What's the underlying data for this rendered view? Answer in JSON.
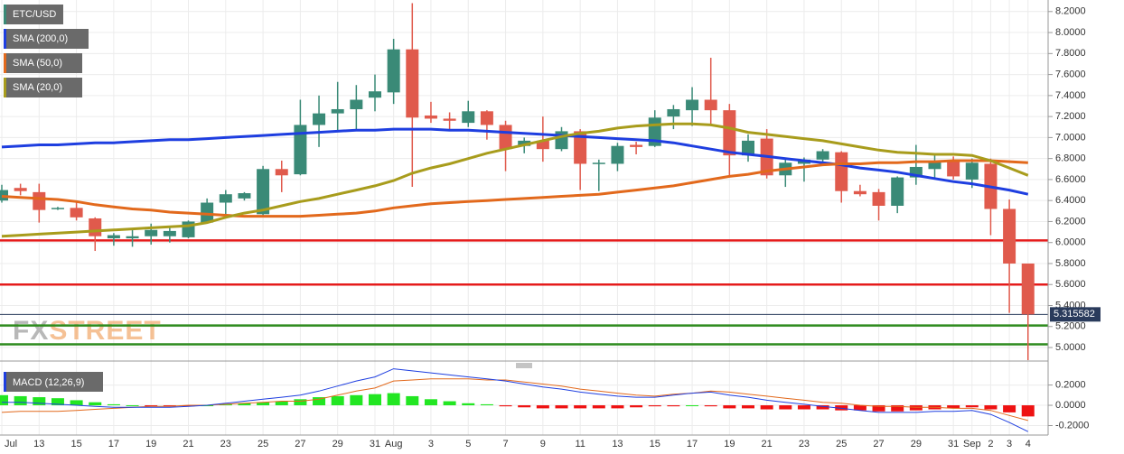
{
  "chart_data": [
    {
      "type": "candlestick",
      "categories": [
        "Jul",
        null,
        "13",
        null,
        "15",
        null,
        "17",
        null,
        "19",
        null,
        "21",
        null,
        "23",
        null,
        "25",
        null,
        "27",
        null,
        "29",
        null,
        "31",
        "Aug",
        null,
        "3",
        null,
        "5",
        null,
        "7",
        null,
        "9",
        null,
        "11",
        null,
        "13",
        null,
        "15",
        null,
        "17",
        null,
        "19",
        null,
        "21",
        null,
        "23",
        null,
        "25",
        null,
        "27",
        null,
        "29",
        null,
        "31",
        "Sep",
        "2",
        "3",
        "4"
      ],
      "series": [
        {
          "name": "ETC/USD",
          "color": "#3a8a77",
          "down_color": "#e05a4c",
          "open": [
            6.4,
            6.52,
            6.48,
            6.32,
            6.33,
            6.23,
            6.04,
            6.04,
            6.06,
            6.06,
            6.05,
            6.19,
            6.38,
            6.42,
            6.27,
            6.7,
            6.65,
            7.12,
            7.23,
            7.27,
            7.38,
            7.43,
            7.84,
            7.21,
            7.18,
            7.14,
            7.25,
            7.12,
            6.92,
            6.97,
            6.89,
            7.06,
            6.75,
            6.75,
            6.93,
            6.92,
            7.2,
            7.26,
            7.36,
            7.26,
            6.83,
            6.99,
            6.64,
            6.75,
            6.79,
            6.86,
            6.49,
            6.48,
            6.35,
            6.62,
            6.7,
            6.78,
            6.6,
            6.75,
            6.32,
            5.8
          ],
          "high": [
            6.55,
            6.56,
            6.56,
            6.34,
            6.38,
            6.24,
            6.09,
            6.13,
            6.18,
            6.15,
            6.21,
            6.42,
            6.5,
            6.48,
            6.73,
            6.78,
            7.36,
            7.4,
            7.53,
            7.5,
            7.6,
            7.94,
            8.28,
            7.34,
            7.24,
            7.35,
            7.26,
            7.16,
            7.0,
            7.2,
            7.1,
            7.08,
            6.79,
            6.95,
            6.96,
            7.26,
            7.31,
            7.48,
            7.76,
            7.32,
            7.03,
            7.08,
            6.79,
            6.81,
            6.89,
            6.87,
            6.55,
            6.51,
            6.63,
            6.93,
            6.85,
            6.82,
            6.8,
            6.8,
            6.41,
            5.8
          ],
          "low": [
            6.38,
            6.45,
            6.19,
            6.31,
            6.21,
            5.92,
            5.97,
            5.96,
            5.98,
            6.0,
            6.04,
            6.18,
            6.24,
            6.4,
            6.26,
            6.48,
            6.64,
            6.91,
            7.06,
            7.06,
            7.25,
            7.32,
            6.53,
            7.14,
            7.06,
            7.1,
            6.98,
            6.68,
            6.85,
            6.77,
            6.87,
            6.5,
            6.49,
            6.68,
            6.84,
            6.91,
            7.08,
            7.11,
            7.13,
            6.63,
            6.77,
            6.61,
            6.53,
            6.58,
            6.77,
            6.38,
            6.44,
            6.21,
            6.28,
            6.55,
            6.6,
            6.6,
            6.52,
            6.07,
            5.33,
            4.88
          ],
          "close": [
            6.5,
            6.49,
            6.31,
            6.33,
            6.24,
            6.06,
            6.07,
            6.06,
            6.12,
            6.11,
            6.2,
            6.38,
            6.46,
            6.47,
            6.7,
            6.64,
            7.12,
            7.23,
            7.27,
            7.36,
            7.44,
            7.84,
            7.19,
            7.18,
            7.16,
            7.25,
            7.12,
            6.89,
            6.97,
            6.89,
            7.06,
            6.75,
            6.76,
            6.92,
            6.91,
            7.19,
            7.27,
            7.36,
            7.26,
            6.83,
            6.97,
            6.64,
            6.76,
            6.79,
            6.87,
            6.49,
            6.46,
            6.35,
            6.62,
            6.72,
            6.78,
            6.63,
            6.76,
            6.32,
            5.8,
            5.315582
          ]
        },
        {
          "name": "SMA (200,0)",
          "color": "#1e3ee0",
          "values": [
            6.91,
            6.92,
            6.93,
            6.93,
            6.94,
            6.95,
            6.95,
            6.96,
            6.97,
            6.98,
            6.98,
            6.99,
            7.0,
            7.01,
            7.02,
            7.03,
            7.04,
            7.05,
            7.06,
            7.07,
            7.07,
            7.08,
            7.08,
            7.08,
            7.07,
            7.07,
            7.06,
            7.05,
            7.04,
            7.03,
            7.02,
            7.01,
            7.0,
            6.99,
            6.98,
            6.97,
            6.95,
            6.92,
            6.89,
            6.86,
            6.84,
            6.82,
            6.8,
            6.78,
            6.76,
            6.74,
            6.71,
            6.69,
            6.67,
            6.64,
            6.61,
            6.58,
            6.56,
            6.53,
            6.5,
            6.46
          ]
        },
        {
          "name": "SMA (50,0)",
          "color": "#e2691c",
          "values": [
            6.44,
            6.43,
            6.42,
            6.41,
            6.39,
            6.36,
            6.34,
            6.32,
            6.31,
            6.29,
            6.28,
            6.27,
            6.26,
            6.25,
            6.25,
            6.25,
            6.25,
            6.26,
            6.27,
            6.28,
            6.3,
            6.33,
            6.35,
            6.37,
            6.38,
            6.39,
            6.4,
            6.41,
            6.42,
            6.43,
            6.44,
            6.45,
            6.46,
            6.48,
            6.5,
            6.52,
            6.54,
            6.57,
            6.6,
            6.63,
            6.65,
            6.68,
            6.7,
            6.72,
            6.74,
            6.75,
            6.75,
            6.76,
            6.76,
            6.77,
            6.77,
            6.78,
            6.78,
            6.78,
            6.77,
            6.76
          ]
        },
        {
          "name": "SMA (20,0)",
          "color": "#a89c1c",
          "values": [
            6.06,
            6.07,
            6.08,
            6.09,
            6.1,
            6.11,
            6.12,
            6.13,
            6.14,
            6.15,
            6.16,
            6.19,
            6.24,
            6.28,
            6.31,
            6.35,
            6.39,
            6.42,
            6.46,
            6.5,
            6.54,
            6.59,
            6.66,
            6.71,
            6.75,
            6.8,
            6.85,
            6.89,
            6.93,
            6.97,
            7.01,
            7.04,
            7.06,
            7.09,
            7.11,
            7.12,
            7.13,
            7.13,
            7.12,
            7.09,
            7.05,
            7.03,
            7.01,
            6.99,
            6.97,
            6.94,
            6.91,
            6.88,
            6.86,
            6.85,
            6.84,
            6.84,
            6.83,
            6.78,
            6.71,
            6.64
          ]
        }
      ],
      "ylim": [
        4.88,
        8.31
      ],
      "yticks": [
        {
          "value": 5.0,
          "label": "5.0000"
        },
        {
          "value": 5.2,
          "label": "5.2000"
        },
        {
          "value": 5.4,
          "label": "5.4000"
        },
        {
          "value": 5.6,
          "label": "5.6000"
        },
        {
          "value": 5.8,
          "label": "5.8000"
        },
        {
          "value": 6.0,
          "label": "6.0000"
        },
        {
          "value": 6.2,
          "label": "6.2000"
        },
        {
          "value": 6.4,
          "label": "6.4000"
        },
        {
          "value": 6.6,
          "label": "6.6000"
        },
        {
          "value": 6.8,
          "label": "6.8000"
        },
        {
          "value": 7.0,
          "label": "7.0000"
        },
        {
          "value": 7.2,
          "label": "7.2000"
        },
        {
          "value": 7.4,
          "label": "7.4000"
        },
        {
          "value": 7.6,
          "label": "7.6000"
        },
        {
          "value": 7.8,
          "label": "7.8000"
        },
        {
          "value": 8.0,
          "label": "8.0000"
        },
        {
          "value": 8.2,
          "label": "8.2000"
        }
      ],
      "grid": true,
      "hlines": [
        {
          "value": 6.02,
          "color": "#e51b1b"
        },
        {
          "value": 5.6,
          "color": "#e51b1b"
        },
        {
          "value": 5.21,
          "color": "#2e8b1e"
        },
        {
          "value": 5.03,
          "color": "#2e8b1e"
        }
      ],
      "last_price": 5.315582,
      "last_price_color": "#2a3b5c",
      "watermark": [
        "FX",
        "STREET"
      ]
    },
    {
      "type": "macd",
      "title": "MACD (12,26,9)",
      "title_color": "#1e3ee0",
      "macd": {
        "color": "#1e3ee0",
        "values": [
          0.03,
          0.03,
          0.02,
          0.01,
          0.0,
          -0.01,
          -0.02,
          -0.02,
          -0.02,
          -0.02,
          -0.01,
          0.0,
          0.02,
          0.04,
          0.06,
          0.08,
          0.1,
          0.14,
          0.19,
          0.24,
          0.28,
          0.36,
          0.34,
          0.32,
          0.3,
          0.28,
          0.26,
          0.24,
          0.21,
          0.18,
          0.16,
          0.13,
          0.11,
          0.09,
          0.08,
          0.08,
          0.1,
          0.12,
          0.13,
          0.1,
          0.08,
          0.05,
          0.03,
          0.01,
          -0.01,
          -0.03,
          -0.05,
          -0.07,
          -0.07,
          -0.07,
          -0.06,
          -0.06,
          -0.05,
          -0.09,
          -0.17,
          -0.26
        ]
      },
      "signal": {
        "color": "#e2691c",
        "values": [
          -0.07,
          -0.06,
          -0.06,
          -0.06,
          -0.05,
          -0.04,
          -0.03,
          -0.02,
          -0.01,
          -0.01,
          0.0,
          0.0,
          0.01,
          0.02,
          0.03,
          0.04,
          0.04,
          0.06,
          0.1,
          0.14,
          0.17,
          0.24,
          0.25,
          0.26,
          0.26,
          0.26,
          0.25,
          0.25,
          0.23,
          0.21,
          0.19,
          0.16,
          0.14,
          0.12,
          0.1,
          0.09,
          0.11,
          0.12,
          0.14,
          0.13,
          0.11,
          0.09,
          0.07,
          0.05,
          0.03,
          0.02,
          0.0,
          -0.01,
          -0.01,
          -0.02,
          -0.02,
          -0.03,
          -0.03,
          -0.05,
          -0.1,
          -0.15
        ]
      },
      "histogram": {
        "up_color": "#22e622",
        "down_color": "#ee1212",
        "values": [
          0.1,
          0.09,
          0.08,
          0.07,
          0.05,
          0.03,
          0.01,
          0.0,
          -0.01,
          -0.01,
          -0.01,
          0.0,
          0.01,
          0.02,
          0.03,
          0.04,
          0.06,
          0.08,
          0.09,
          0.1,
          0.11,
          0.12,
          0.09,
          0.06,
          0.04,
          0.02,
          0.01,
          -0.01,
          -0.02,
          -0.03,
          -0.03,
          -0.03,
          -0.03,
          -0.03,
          -0.02,
          -0.01,
          -0.01,
          0.0,
          -0.01,
          -0.03,
          -0.03,
          -0.04,
          -0.04,
          -0.04,
          -0.04,
          -0.05,
          -0.05,
          -0.06,
          -0.06,
          -0.05,
          -0.04,
          -0.03,
          -0.02,
          -0.04,
          -0.07,
          -0.11
        ]
      },
      "ylim": [
        -0.29,
        0.41
      ],
      "yticks": [
        {
          "value": 0.2,
          "label": "0.2000"
        },
        {
          "value": 0,
          "label": "0.0000"
        },
        {
          "value": -0.2,
          "label": "-0.2000"
        }
      ],
      "grid": true
    }
  ]
}
